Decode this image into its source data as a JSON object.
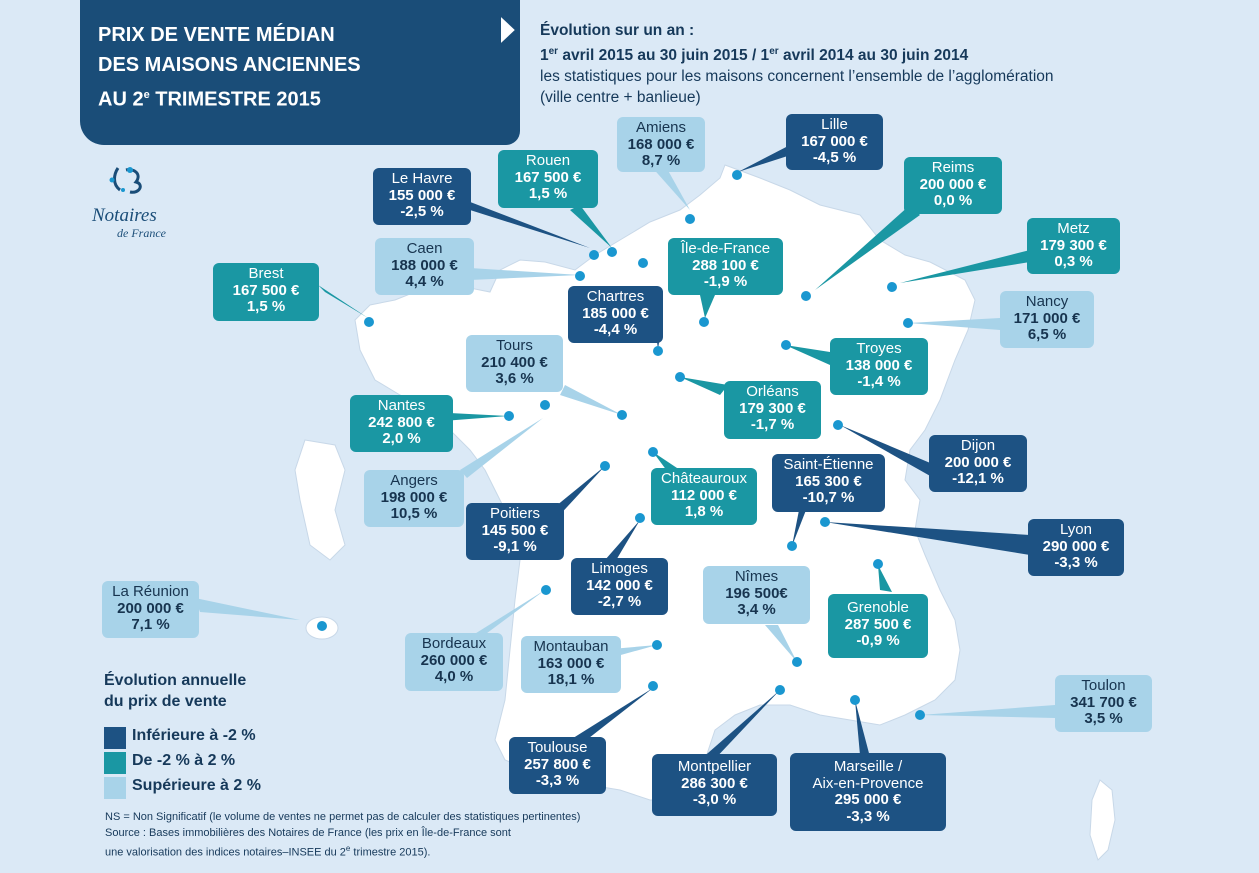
{
  "header": {
    "title_line1": "PRIX DE VENTE MÉDIAN",
    "title_line2": "DES MAISONS ANCIENNES",
    "title_line3_prefix": "AU 2",
    "title_line3_sup": "e",
    "title_line3_suffix": " TRIMESTRE 2015"
  },
  "subtitle": {
    "line1": "Évolution sur un an :",
    "line2_a": "1",
    "line2_sup1": "er",
    "line2_b": " avril 2015 au 30 juin 2015 / 1",
    "line2_sup2": "er",
    "line2_c": " avril 2014 au 30 juin 2014",
    "line3": "les statistiques pour les maisons concernent l’ensemble de l’agglomération",
    "line4": "(ville centre + banlieue)"
  },
  "logo": {
    "name": "Notaires",
    "sub": "de France"
  },
  "colors": {
    "low": "#1d5283",
    "mid": "#1a97a3",
    "high": "#a8d3e9",
    "map_fill": "#ffffff",
    "background": "#dbe9f6"
  },
  "cities": [
    {
      "city": "Amiens",
      "price": "168 000 €",
      "change": "8,7 %",
      "cat": "high"
    },
    {
      "city": "Lille",
      "price": "167 000 €",
      "change": "-4,5 %",
      "cat": "low"
    },
    {
      "city": "Rouen",
      "price": "167 500 €",
      "change": "1,5 %",
      "cat": "mid"
    },
    {
      "city": "Reims",
      "price": "200 000 €",
      "change": "0,0 %",
      "cat": "mid"
    },
    {
      "city": "Le Havre",
      "price": "155 000 €",
      "change": "-2,5 %",
      "cat": "low"
    },
    {
      "city": "Metz",
      "price": "179 300 €",
      "change": "0,3 %",
      "cat": "mid"
    },
    {
      "city": "Caen",
      "price": "188 000 €",
      "change": "4,4 %",
      "cat": "high"
    },
    {
      "city": "Île-de-France",
      "price": "288 100 €",
      "change": "-1,9 %",
      "cat": "mid"
    },
    {
      "city": "Brest",
      "price": "167 500 €",
      "change": "1,5 %",
      "cat": "mid"
    },
    {
      "city": "Chartres",
      "price": "185 000 €",
      "change": "-4,4 %",
      "cat": "low"
    },
    {
      "city": "Nancy",
      "price": "171 000 €",
      "change": "6,5 %",
      "cat": "high"
    },
    {
      "city": "Tours",
      "price": "210 400 €",
      "change": "3,6 %",
      "cat": "high"
    },
    {
      "city": "Troyes",
      "price": "138 000 €",
      "change": "-1,4 %",
      "cat": "mid"
    },
    {
      "city": "Nantes",
      "price": "242 800 €",
      "change": "2,0 %",
      "cat": "mid"
    },
    {
      "city": "Orléans",
      "price": "179 300 €",
      "change": "-1,7 %",
      "cat": "mid"
    },
    {
      "city": "Dijon",
      "price": "200 000 €",
      "change": "-12,1 %",
      "cat": "low"
    },
    {
      "city": "Angers",
      "price": "198 000 €",
      "change": "10,5 %",
      "cat": "high"
    },
    {
      "city": "Châteauroux",
      "price": "112 000 €",
      "change": "1,8 %",
      "cat": "mid"
    },
    {
      "city": "Saint-Étienne",
      "price": "165 300 €",
      "change": "-10,7 %",
      "cat": "low"
    },
    {
      "city": "Poitiers",
      "price": "145 500 €",
      "change": "-9,1 %",
      "cat": "low"
    },
    {
      "city": "Lyon",
      "price": "290 000 €",
      "change": "-3,3 %",
      "cat": "low"
    },
    {
      "city": "La Réunion",
      "price": "200 000 €",
      "change": "7,1 %",
      "cat": "high"
    },
    {
      "city": "Limoges",
      "price": "142 000 €",
      "change": "-2,7 %",
      "cat": "low"
    },
    {
      "city": "Nîmes",
      "price": "196 500€",
      "change": "3,4 %",
      "cat": "high"
    },
    {
      "city": "Grenoble",
      "price": "287 500 €",
      "change": "-0,9 %",
      "cat": "mid"
    },
    {
      "city": "Bordeaux",
      "price": "260 000 €",
      "change": "4,0 %",
      "cat": "high"
    },
    {
      "city": "Montauban",
      "price": "163 000 €",
      "change": "18,1 %",
      "cat": "high"
    },
    {
      "city": "Toulon",
      "price": "341 700 €",
      "change": "3,5 %",
      "cat": "high"
    },
    {
      "city": "Toulouse",
      "price": "257 800 €",
      "change": "-3,3 %",
      "cat": "low"
    },
    {
      "city": "Montpellier",
      "price": "286 300 €",
      "change": "-3,0 %",
      "cat": "low"
    },
    {
      "city": "Marseille /\nAix-en-Provence",
      "price": "295 000 €",
      "change": "-3,3 %",
      "cat": "low"
    }
  ],
  "legend": {
    "title_line1": "Évolution annuelle",
    "title_line2": "du prix de vente",
    "items": [
      {
        "label": "Inférieure à -2 %",
        "cat": "low"
      },
      {
        "label": "De -2 % à 2 %",
        "cat": "mid"
      },
      {
        "label": "Supérieure à 2 %",
        "cat": "high"
      }
    ]
  },
  "footnote": {
    "line1": "NS = Non Significatif (le volume de ventes ne permet pas de calculer des statistiques pertinentes)",
    "line2": "Source : Bases immobilières des Notaires de France (les prix en Île-de-France sont",
    "line3_a": "une valorisation des indices notaires–INSEE du 2",
    "line3_sup": "e",
    "line3_b": " trimestre 2015)."
  }
}
